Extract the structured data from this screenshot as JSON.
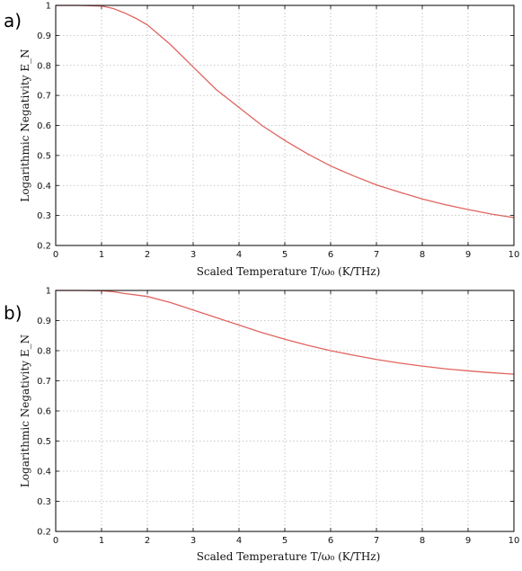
{
  "chart_data": [
    {
      "type": "line",
      "panel_label": "a)",
      "xlabel": "Scaled Temperature T/ω₀ (K/THz)",
      "ylabel": "Logarithmic Negativity E_N",
      "xlim": [
        0,
        10
      ],
      "ylim": [
        0.2,
        1
      ],
      "xticks": [
        "0",
        "1",
        "2",
        "3",
        "4",
        "5",
        "6",
        "7",
        "8",
        "9",
        "10"
      ],
      "yticks": [
        "0.2",
        "0.3",
        "0.4",
        "0.5",
        "0.6",
        "0.7",
        "0.8",
        "0.9",
        "1"
      ],
      "grid": true,
      "color": "#e0645f",
      "series": [
        {
          "x": [
            0,
            0.5,
            1,
            1.25,
            1.5,
            1.75,
            2,
            2.5,
            3,
            3.5,
            4,
            4.5,
            5,
            5.5,
            6,
            6.5,
            7,
            7.5,
            8,
            8.5,
            9,
            9.5,
            10
          ],
          "values": [
            1.0,
            1.0,
            0.998,
            0.99,
            0.975,
            0.957,
            0.935,
            0.87,
            0.795,
            0.72,
            0.66,
            0.6,
            0.55,
            0.505,
            0.465,
            0.432,
            0.402,
            0.378,
            0.355,
            0.336,
            0.32,
            0.305,
            0.293
          ]
        }
      ]
    },
    {
      "type": "line",
      "panel_label": "b)",
      "xlabel": "Scaled Temperature T/ω₀ (K/THz)",
      "ylabel": "Logarithmic Negativity E_N",
      "xlim": [
        0,
        10
      ],
      "ylim": [
        0.2,
        1
      ],
      "xticks": [
        "0",
        "1",
        "2",
        "3",
        "4",
        "5",
        "6",
        "7",
        "8",
        "9",
        "10"
      ],
      "yticks": [
        "0.2",
        "0.3",
        "0.4",
        "0.5",
        "0.6",
        "0.7",
        "0.8",
        "0.9",
        "1"
      ],
      "grid": true,
      "color": "#e0645f",
      "series": [
        {
          "x": [
            0,
            0.5,
            1,
            1.25,
            1.5,
            2,
            2.5,
            3,
            3.5,
            4,
            4.5,
            5,
            5.5,
            6,
            6.5,
            7,
            7.5,
            8,
            8.5,
            9,
            9.5,
            10
          ],
          "values": [
            1.0,
            1.0,
            0.999,
            0.996,
            0.99,
            0.98,
            0.96,
            0.935,
            0.91,
            0.885,
            0.86,
            0.838,
            0.818,
            0.8,
            0.785,
            0.771,
            0.759,
            0.749,
            0.74,
            0.733,
            0.727,
            0.722
          ]
        }
      ]
    }
  ]
}
